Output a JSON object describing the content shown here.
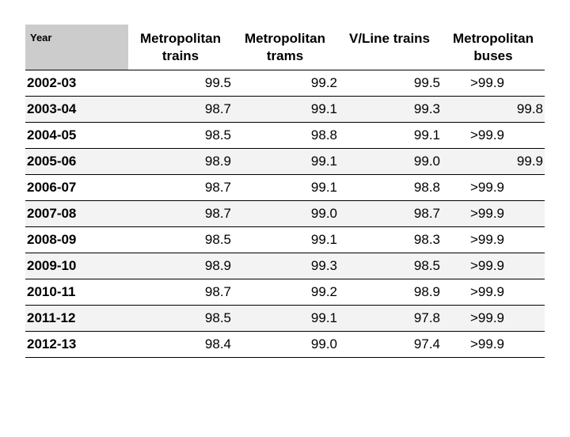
{
  "table": {
    "headers": {
      "year": "Year",
      "metro_trains": [
        "Metropolitan",
        "trains"
      ],
      "metro_trams": [
        "Metropolitan",
        "trams"
      ],
      "vline_trains": [
        "V/Line trains",
        ""
      ],
      "metro_buses": [
        "Metropolitan",
        "buses"
      ]
    },
    "rows": [
      {
        "year": "2002-03",
        "trains": "99.5",
        "trams": "99.2",
        "vline": "99.5",
        "buses": ">99.9"
      },
      {
        "year": "2003-04",
        "trains": "98.7",
        "trams": "99.1",
        "vline": "99.3",
        "buses": "99.8"
      },
      {
        "year": "2004-05",
        "trains": "98.5",
        "trams": "98.8",
        "vline": "99.1",
        "buses": ">99.9"
      },
      {
        "year": "2005-06",
        "trains": "98.9",
        "trams": "99.1",
        "vline": "99.0",
        "buses": "99.9"
      },
      {
        "year": "2006-07",
        "trains": "98.7",
        "trams": "99.1",
        "vline": "98.8",
        "buses": ">99.9"
      },
      {
        "year": "2007-08",
        "trains": "98.7",
        "trams": "99.0",
        "vline": "98.7",
        "buses": ">99.9"
      },
      {
        "year": "2008-09",
        "trains": "98.5",
        "trams": "99.1",
        "vline": "98.3",
        "buses": ">99.9"
      },
      {
        "year": "2009-10",
        "trains": "98.9",
        "trams": "99.3",
        "vline": "98.5",
        "buses": ">99.9"
      },
      {
        "year": "2010-11",
        "trains": "98.7",
        "trams": "99.2",
        "vline": "98.9",
        "buses": ">99.9"
      },
      {
        "year": "2011-12",
        "trains": "98.5",
        "trams": "99.1",
        "vline": "97.8",
        "buses": ">99.9"
      },
      {
        "year": "2012-13",
        "trains": "98.4",
        "trams": "99.0",
        "vline": "97.4",
        "buses": ">99.9"
      }
    ]
  }
}
